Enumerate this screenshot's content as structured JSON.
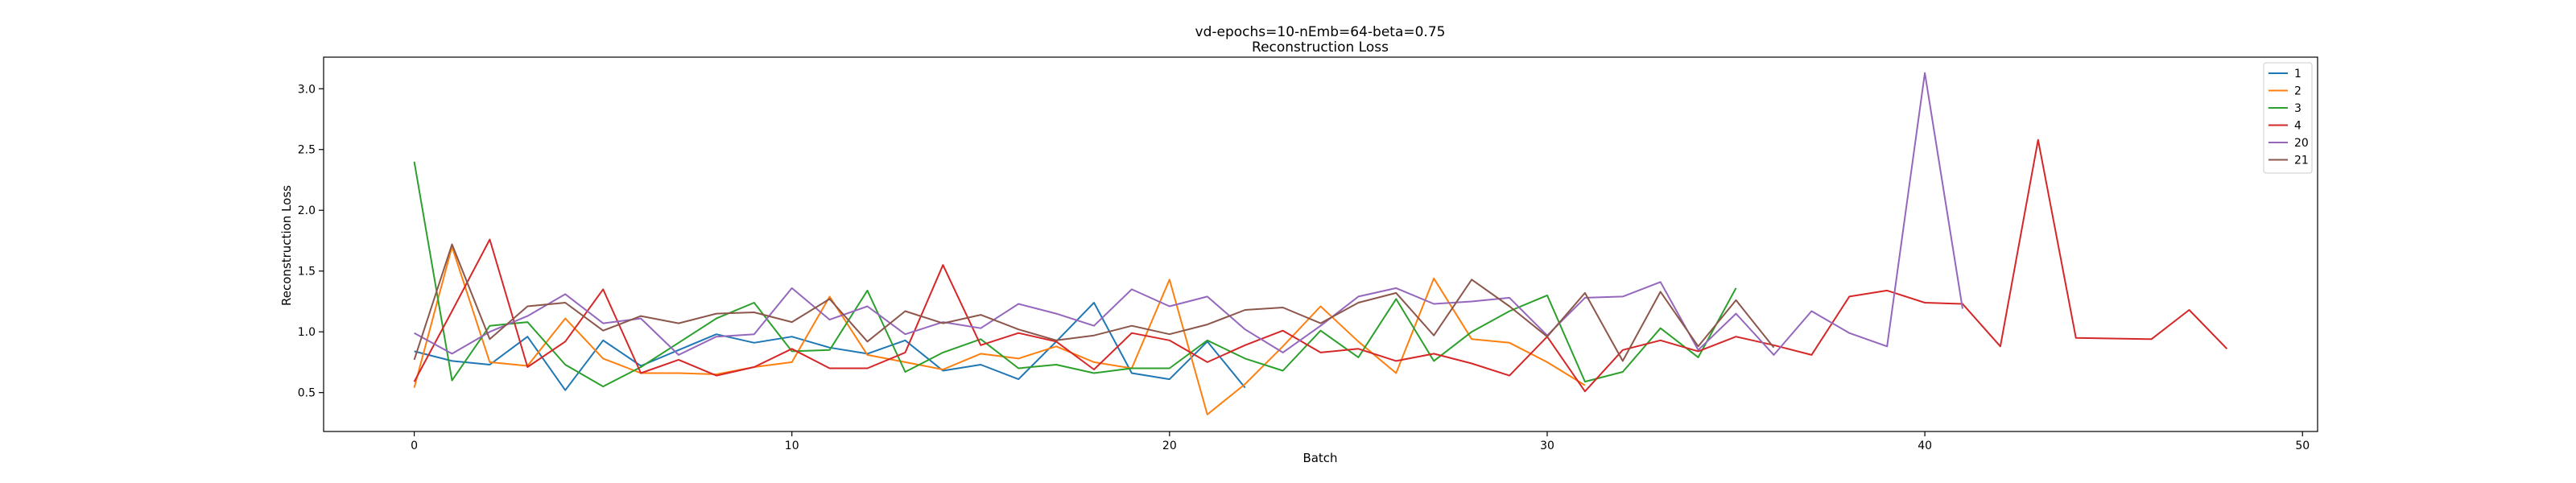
{
  "chart_data": {
    "type": "line",
    "title": "vd-epochs=10-nEmb=64-beta=0.75",
    "subtitle": "Reconstruction Loss",
    "xlabel": "Batch",
    "ylabel": "Reconstruction Loss",
    "xlim": [
      -2.4,
      50.4
    ],
    "ylim": [
      0.18,
      3.26
    ],
    "xticks": [
      0,
      10,
      20,
      30,
      40,
      50
    ],
    "yticks": [
      0.5,
      1.0,
      1.5,
      2.0,
      2.5,
      3.0
    ],
    "ytick_labels": [
      "0.5",
      "1.0",
      "1.5",
      "2.0",
      "2.5",
      "3.0"
    ],
    "grid": false,
    "legend_position": "top-right",
    "series": [
      {
        "name": "1",
        "color": "#1f77b4",
        "x": [
          0,
          1,
          2,
          3,
          4,
          5,
          6,
          7,
          8,
          9,
          10,
          11,
          12,
          13,
          14,
          15,
          16,
          17,
          18,
          19,
          20,
          21,
          22
        ],
        "values": [
          0.84,
          0.76,
          0.73,
          0.96,
          0.52,
          0.93,
          0.72,
          0.85,
          0.98,
          0.91,
          0.96,
          0.87,
          0.82,
          0.93,
          0.68,
          0.73,
          0.61,
          0.92,
          1.24,
          0.66,
          0.61,
          0.92,
          0.54
        ]
      },
      {
        "name": "2",
        "color": "#ff7f0e",
        "x": [
          0,
          1,
          2,
          3,
          4,
          5,
          6,
          7,
          8,
          9,
          10,
          11,
          12,
          13,
          14,
          15,
          16,
          17,
          18,
          19,
          20,
          21,
          22,
          23,
          24,
          25,
          26,
          27,
          28,
          29,
          30,
          31
        ],
        "values": [
          0.54,
          1.7,
          0.75,
          0.72,
          1.11,
          0.78,
          0.66,
          0.66,
          0.65,
          0.71,
          0.75,
          1.29,
          0.81,
          0.75,
          0.69,
          0.82,
          0.78,
          0.88,
          0.75,
          0.7,
          1.43,
          0.32,
          0.57,
          0.88,
          1.21,
          0.92,
          0.66,
          1.44,
          0.94,
          0.91,
          0.75,
          0.56
        ]
      },
      {
        "name": "3",
        "color": "#2ca02c",
        "x": [
          0,
          1,
          2,
          3,
          4,
          5,
          6,
          7,
          8,
          9,
          10,
          11,
          12,
          13,
          14,
          15,
          16,
          17,
          18,
          19,
          20,
          21,
          22,
          23,
          24,
          25,
          26,
          27,
          28,
          29,
          30,
          31,
          32,
          33,
          34,
          35
        ],
        "values": [
          2.4,
          0.6,
          1.05,
          1.08,
          0.73,
          0.55,
          0.71,
          0.91,
          1.11,
          1.24,
          0.84,
          0.85,
          1.34,
          0.67,
          0.83,
          0.94,
          0.7,
          0.73,
          0.66,
          0.7,
          0.7,
          0.93,
          0.78,
          0.68,
          1.01,
          0.79,
          1.27,
          0.76,
          1.0,
          1.17,
          1.3,
          0.59,
          0.67,
          1.03,
          0.79,
          1.36
        ]
      },
      {
        "name": "4",
        "color": "#d62728",
        "x": [
          0,
          1,
          2,
          3,
          4,
          5,
          6,
          7,
          8,
          9,
          10,
          11,
          12,
          13,
          14,
          15,
          16,
          17,
          18,
          19,
          20,
          21,
          22,
          23,
          24,
          25,
          26,
          27,
          28,
          29,
          30,
          31,
          32,
          33,
          34,
          35,
          36,
          37,
          38,
          39,
          40,
          41,
          42,
          43,
          44,
          46,
          47,
          48
        ],
        "values": [
          0.59,
          1.17,
          1.76,
          0.71,
          0.92,
          1.35,
          0.66,
          0.77,
          0.64,
          0.71,
          0.86,
          0.7,
          0.7,
          0.83,
          1.55,
          0.89,
          0.99,
          0.92,
          0.69,
          0.99,
          0.93,
          0.75,
          0.89,
          1.01,
          0.83,
          0.86,
          0.76,
          0.82,
          0.74,
          0.64,
          0.96,
          0.51,
          0.85,
          0.93,
          0.84,
          0.96,
          0.89,
          0.81,
          1.29,
          1.34,
          1.24,
          1.23,
          0.88,
          2.58,
          0.95,
          0.94,
          1.18,
          0.86
        ]
      },
      {
        "name": "20",
        "color": "#9467bd",
        "x": [
          0,
          1,
          2,
          3,
          4,
          5,
          6,
          7,
          8,
          9,
          10,
          11,
          12,
          13,
          14,
          15,
          16,
          17,
          18,
          19,
          20,
          21,
          22,
          23,
          24,
          25,
          26,
          27,
          28,
          29,
          30,
          31,
          32,
          33,
          34,
          35,
          36,
          37,
          38,
          39,
          40,
          41
        ],
        "values": [
          0.99,
          0.82,
          1.0,
          1.13,
          1.31,
          1.07,
          1.11,
          0.81,
          0.96,
          0.98,
          1.36,
          1.1,
          1.21,
          0.98,
          1.08,
          1.03,
          1.23,
          1.15,
          1.05,
          1.35,
          1.21,
          1.29,
          1.02,
          0.83,
          1.05,
          1.29,
          1.36,
          1.23,
          1.25,
          1.28,
          0.97,
          1.28,
          1.29,
          1.41,
          0.85,
          1.15,
          0.81,
          1.17,
          0.99,
          0.88,
          3.13,
          1.19
        ]
      },
      {
        "name": "21",
        "color": "#8c564b",
        "x": [
          0,
          1,
          2,
          3,
          4,
          5,
          6,
          7,
          8,
          9,
          10,
          11,
          12,
          13,
          14,
          15,
          16,
          17,
          18,
          19,
          20,
          21,
          22,
          23,
          24,
          25,
          26,
          27,
          28,
          29,
          30,
          31,
          32,
          33,
          34,
          35,
          36
        ],
        "values": [
          0.77,
          1.72,
          0.94,
          1.21,
          1.24,
          1.01,
          1.13,
          1.07,
          1.15,
          1.16,
          1.08,
          1.27,
          0.92,
          1.17,
          1.07,
          1.14,
          1.02,
          0.93,
          0.97,
          1.05,
          0.98,
          1.06,
          1.18,
          1.2,
          1.07,
          1.24,
          1.32,
          0.97,
          1.43,
          1.21,
          0.96,
          1.32,
          0.76,
          1.33,
          0.88,
          1.26,
          0.87
        ]
      }
    ]
  }
}
